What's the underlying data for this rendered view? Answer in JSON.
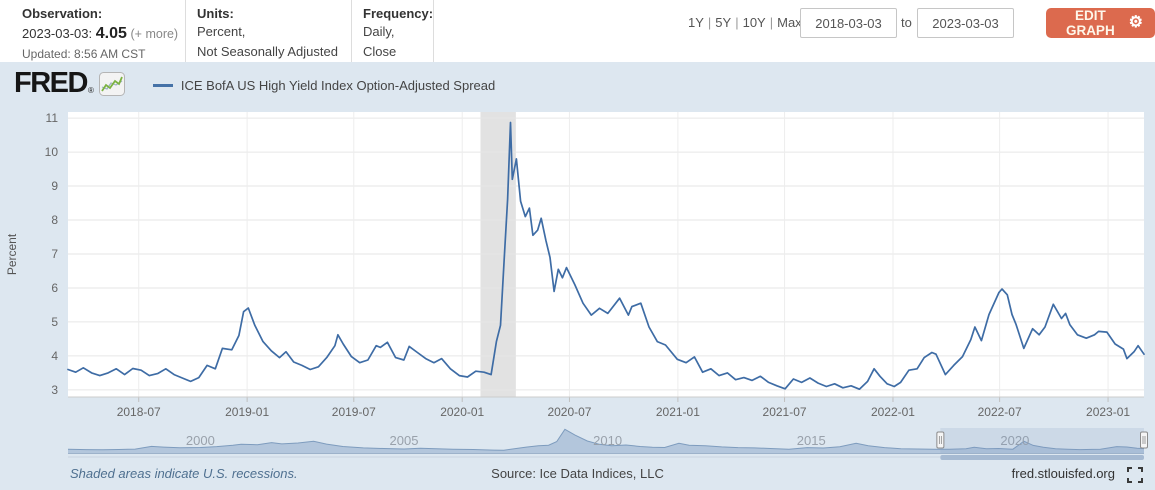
{
  "header": {
    "observation": {
      "label": "Observation:",
      "date": "2023-03-03:",
      "value": "4.05",
      "more_link": "(+ more)",
      "updated": "Updated: 8:56 AM CST"
    },
    "units": {
      "label": "Units:",
      "line1": "Percent,",
      "line2": "Not Seasonally Adjusted"
    },
    "frequency": {
      "label": "Frequency:",
      "line1": "Daily,",
      "line2": "Close"
    },
    "ranges": {
      "labels": [
        "1Y",
        "5Y",
        "10Y",
        "Max"
      ],
      "separator": "|"
    },
    "date_from": "2018-03-03",
    "to_label": "to",
    "date_to": "2023-03-03",
    "edit_button": {
      "label": "EDIT GRAPH",
      "icon": "gear-icon"
    }
  },
  "branding": {
    "logo_text": "FRED",
    "reg_mark": "®",
    "logo_icon": "sparkline-chart-icon",
    "legend_series": "ICE BofA US High Yield Index Option-Adjusted Spread"
  },
  "footer": {
    "left": "Shaded areas indicate U.S. recessions.",
    "center": "Source: Ice Data Indices, LLC",
    "right": "fred.stlouisfed.org",
    "fullscreen_icon": "fullscreen-icon"
  },
  "colors": {
    "accent_line": "#3e6ca5",
    "legend_dash": "#4572a7",
    "edit_button": "#dc6a4e",
    "graph_bg": "#dde7f0",
    "recession_band": "#e2e2e2",
    "grid_h": "#e6e6e6",
    "grid_v": "#ededed",
    "axis_text": "#666666",
    "nav_fill": "#b3c6dc",
    "nav_stroke": "#7e9cbe",
    "nav_label": "#99a1ab",
    "nav_selection": "rgba(127,155,196,0.18)",
    "nav_thumb": "#a6bad2"
  },
  "chart_data": [
    {
      "type": "line",
      "name": "ICE BofA US High Yield Index Option-Adjusted Spread",
      "ylabel": "Percent",
      "yticks": [
        3,
        4,
        5,
        6,
        7,
        8,
        9,
        10,
        11
      ],
      "ylim": [
        2.79,
        11.18
      ],
      "xdomain": [
        "2018-03-03",
        "2023-03-03"
      ],
      "xticks": [
        {
          "date": "2018-07-01",
          "label": "2018-07"
        },
        {
          "date": "2019-01-01",
          "label": "2019-01"
        },
        {
          "date": "2019-07-01",
          "label": "2019-07"
        },
        {
          "date": "2020-01-01",
          "label": "2020-01"
        },
        {
          "date": "2020-07-01",
          "label": "2020-07"
        },
        {
          "date": "2021-01-01",
          "label": "2021-01"
        },
        {
          "date": "2021-07-01",
          "label": "2021-07"
        },
        {
          "date": "2022-01-01",
          "label": "2022-01"
        },
        {
          "date": "2022-07-01",
          "label": "2022-07"
        },
        {
          "date": "2023-01-01",
          "label": "2023-01"
        }
      ],
      "recession_bands": [
        {
          "from": "2020-02-01",
          "to": "2020-04-01"
        }
      ],
      "points": [
        [
          "2018-03-03",
          3.6
        ],
        [
          "2018-03-16",
          3.52
        ],
        [
          "2018-03-29",
          3.65
        ],
        [
          "2018-04-12",
          3.5
        ],
        [
          "2018-04-26",
          3.42
        ],
        [
          "2018-05-10",
          3.5
        ],
        [
          "2018-05-24",
          3.62
        ],
        [
          "2018-06-07",
          3.45
        ],
        [
          "2018-06-21",
          3.63
        ],
        [
          "2018-07-05",
          3.58
        ],
        [
          "2018-07-19",
          3.42
        ],
        [
          "2018-08-02",
          3.48
        ],
        [
          "2018-08-16",
          3.62
        ],
        [
          "2018-08-30",
          3.45
        ],
        [
          "2018-09-13",
          3.35
        ],
        [
          "2018-09-27",
          3.25
        ],
        [
          "2018-10-11",
          3.36
        ],
        [
          "2018-10-25",
          3.72
        ],
        [
          "2018-11-08",
          3.62
        ],
        [
          "2018-11-20",
          4.22
        ],
        [
          "2018-12-06",
          4.18
        ],
        [
          "2018-12-18",
          4.6
        ],
        [
          "2018-12-26",
          5.3
        ],
        [
          "2019-01-03",
          5.41
        ],
        [
          "2019-01-14",
          4.9
        ],
        [
          "2019-01-28",
          4.42
        ],
        [
          "2019-02-11",
          4.15
        ],
        [
          "2019-02-25",
          3.95
        ],
        [
          "2019-03-08",
          4.12
        ],
        [
          "2019-03-21",
          3.82
        ],
        [
          "2019-04-04",
          3.72
        ],
        [
          "2019-04-18",
          3.6
        ],
        [
          "2019-05-02",
          3.68
        ],
        [
          "2019-05-16",
          3.95
        ],
        [
          "2019-05-30",
          4.3
        ],
        [
          "2019-06-04",
          4.62
        ],
        [
          "2019-06-13",
          4.35
        ],
        [
          "2019-06-27",
          3.98
        ],
        [
          "2019-07-11",
          3.8
        ],
        [
          "2019-07-25",
          3.88
        ],
        [
          "2019-08-08",
          4.3
        ],
        [
          "2019-08-15",
          4.25
        ],
        [
          "2019-08-27",
          4.4
        ],
        [
          "2019-09-10",
          3.95
        ],
        [
          "2019-09-24",
          3.88
        ],
        [
          "2019-10-03",
          4.28
        ],
        [
          "2019-10-17",
          4.1
        ],
        [
          "2019-10-31",
          3.92
        ],
        [
          "2019-11-14",
          3.8
        ],
        [
          "2019-11-27",
          3.92
        ],
        [
          "2019-12-12",
          3.62
        ],
        [
          "2019-12-27",
          3.42
        ],
        [
          "2020-01-10",
          3.38
        ],
        [
          "2020-01-24",
          3.55
        ],
        [
          "2020-02-07",
          3.52
        ],
        [
          "2020-02-19",
          3.45
        ],
        [
          "2020-02-28",
          4.42
        ],
        [
          "2020-03-06",
          4.9
        ],
        [
          "2020-03-12",
          6.8
        ],
        [
          "2020-03-18",
          8.6
        ],
        [
          "2020-03-23",
          10.87
        ],
        [
          "2020-03-26",
          9.2
        ],
        [
          "2020-04-02",
          9.8
        ],
        [
          "2020-04-09",
          8.55
        ],
        [
          "2020-04-17",
          8.1
        ],
        [
          "2020-04-24",
          8.35
        ],
        [
          "2020-04-30",
          7.55
        ],
        [
          "2020-05-08",
          7.7
        ],
        [
          "2020-05-14",
          8.05
        ],
        [
          "2020-05-22",
          7.4
        ],
        [
          "2020-05-29",
          6.9
        ],
        [
          "2020-06-05",
          5.9
        ],
        [
          "2020-06-12",
          6.55
        ],
        [
          "2020-06-19",
          6.3
        ],
        [
          "2020-06-26",
          6.6
        ],
        [
          "2020-07-10",
          6.1
        ],
        [
          "2020-07-24",
          5.55
        ],
        [
          "2020-08-07",
          5.2
        ],
        [
          "2020-08-21",
          5.4
        ],
        [
          "2020-09-04",
          5.25
        ],
        [
          "2020-09-24",
          5.7
        ],
        [
          "2020-10-09",
          5.2
        ],
        [
          "2020-10-15",
          5.45
        ],
        [
          "2020-10-30",
          5.55
        ],
        [
          "2020-11-13",
          4.85
        ],
        [
          "2020-11-27",
          4.42
        ],
        [
          "2020-12-11",
          4.32
        ],
        [
          "2020-12-31",
          3.9
        ],
        [
          "2021-01-15",
          3.8
        ],
        [
          "2021-01-29",
          3.97
        ],
        [
          "2021-02-12",
          3.52
        ],
        [
          "2021-02-26",
          3.62
        ],
        [
          "2021-03-12",
          3.42
        ],
        [
          "2021-03-26",
          3.5
        ],
        [
          "2021-04-09",
          3.3
        ],
        [
          "2021-04-23",
          3.36
        ],
        [
          "2021-05-07",
          3.28
        ],
        [
          "2021-05-21",
          3.4
        ],
        [
          "2021-06-04",
          3.22
        ],
        [
          "2021-06-18",
          3.12
        ],
        [
          "2021-07-02",
          3.03
        ],
        [
          "2021-07-16",
          3.32
        ],
        [
          "2021-07-30",
          3.22
        ],
        [
          "2021-08-13",
          3.35
        ],
        [
          "2021-08-27",
          3.2
        ],
        [
          "2021-09-10",
          3.1
        ],
        [
          "2021-09-24",
          3.18
        ],
        [
          "2021-10-08",
          3.06
        ],
        [
          "2021-10-22",
          3.12
        ],
        [
          "2021-11-05",
          3.02
        ],
        [
          "2021-11-19",
          3.25
        ],
        [
          "2021-11-30",
          3.62
        ],
        [
          "2021-12-10",
          3.4
        ],
        [
          "2021-12-22",
          3.18
        ],
        [
          "2022-01-03",
          3.1
        ],
        [
          "2022-01-14",
          3.22
        ],
        [
          "2022-01-28",
          3.58
        ],
        [
          "2022-02-11",
          3.62
        ],
        [
          "2022-02-23",
          3.95
        ],
        [
          "2022-03-08",
          4.1
        ],
        [
          "2022-03-15",
          4.05
        ],
        [
          "2022-03-31",
          3.45
        ],
        [
          "2022-04-14",
          3.72
        ],
        [
          "2022-04-29",
          3.98
        ],
        [
          "2022-05-13",
          4.48
        ],
        [
          "2022-05-20",
          4.85
        ],
        [
          "2022-05-31",
          4.45
        ],
        [
          "2022-06-13",
          5.22
        ],
        [
          "2022-06-30",
          5.87
        ],
        [
          "2022-07-05",
          5.97
        ],
        [
          "2022-07-14",
          5.8
        ],
        [
          "2022-07-22",
          5.22
        ],
        [
          "2022-07-29",
          4.92
        ],
        [
          "2022-08-11",
          4.22
        ],
        [
          "2022-08-26",
          4.8
        ],
        [
          "2022-09-06",
          4.62
        ],
        [
          "2022-09-16",
          4.85
        ],
        [
          "2022-09-30",
          5.52
        ],
        [
          "2022-10-14",
          5.1
        ],
        [
          "2022-10-21",
          5.25
        ],
        [
          "2022-10-28",
          4.92
        ],
        [
          "2022-11-10",
          4.62
        ],
        [
          "2022-11-25",
          4.52
        ],
        [
          "2022-12-09",
          4.62
        ],
        [
          "2022-12-16",
          4.72
        ],
        [
          "2022-12-30",
          4.7
        ],
        [
          "2023-01-13",
          4.35
        ],
        [
          "2023-01-27",
          4.2
        ],
        [
          "2023-02-02",
          3.92
        ],
        [
          "2023-02-14",
          4.12
        ],
        [
          "2023-02-21",
          4.3
        ],
        [
          "2023-03-03",
          4.05
        ]
      ]
    },
    {
      "type": "area",
      "name": "full-history-navigator",
      "xdomain": [
        1996.75,
        2023.17
      ],
      "ylim": [
        0,
        23
      ],
      "xticks": [
        2000,
        2005,
        2010,
        2015,
        2020
      ],
      "selection": {
        "from": 2018.17,
        "to": 2023.17
      },
      "points": [
        [
          1996.75,
          3.5
        ],
        [
          1997.2,
          3.1
        ],
        [
          1997.6,
          2.9
        ],
        [
          1998.0,
          3.2
        ],
        [
          1998.4,
          3.6
        ],
        [
          1998.8,
          6.1
        ],
        [
          1999.1,
          5.4
        ],
        [
          1999.5,
          4.9
        ],
        [
          2000.0,
          5.1
        ],
        [
          2000.4,
          5.9
        ],
        [
          2000.8,
          7.2
        ],
        [
          2001.0,
          8.1
        ],
        [
          2001.4,
          7.6
        ],
        [
          2001.75,
          9.6
        ],
        [
          2002.0,
          8.4
        ],
        [
          2002.4,
          9.2
        ],
        [
          2002.78,
          10.9
        ],
        [
          2003.1,
          8.2
        ],
        [
          2003.5,
          6.0
        ],
        [
          2004.0,
          4.7
        ],
        [
          2004.5,
          4.1
        ],
        [
          2005.0,
          3.7
        ],
        [
          2005.4,
          4.4
        ],
        [
          2005.8,
          3.9
        ],
        [
          2006.2,
          3.5
        ],
        [
          2006.7,
          3.2
        ],
        [
          2007.2,
          2.7
        ],
        [
          2007.45,
          2.5
        ],
        [
          2007.8,
          4.4
        ],
        [
          2008.0,
          5.4
        ],
        [
          2008.3,
          6.6
        ],
        [
          2008.55,
          7.2
        ],
        [
          2008.75,
          10.5
        ],
        [
          2008.95,
          21.8
        ],
        [
          2009.2,
          16.5
        ],
        [
          2009.5,
          11.0
        ],
        [
          2009.8,
          8.0
        ],
        [
          2010.1,
          6.6
        ],
        [
          2010.45,
          7.4
        ],
        [
          2010.8,
          6.0
        ],
        [
          2011.1,
          5.3
        ],
        [
          2011.4,
          5.1
        ],
        [
          2011.75,
          8.9
        ],
        [
          2012.0,
          7.2
        ],
        [
          2012.4,
          6.6
        ],
        [
          2012.8,
          5.6
        ],
        [
          2013.2,
          5.0
        ],
        [
          2013.6,
          4.7
        ],
        [
          2014.0,
          4.1
        ],
        [
          2014.45,
          3.5
        ],
        [
          2014.9,
          5.0
        ],
        [
          2015.3,
          4.6
        ],
        [
          2015.7,
          5.8
        ],
        [
          2016.1,
          8.9
        ],
        [
          2016.4,
          6.6
        ],
        [
          2016.8,
          5.0
        ],
        [
          2017.2,
          4.0
        ],
        [
          2017.6,
          3.7
        ],
        [
          2018.0,
          3.5
        ],
        [
          2018.4,
          3.5
        ],
        [
          2018.8,
          3.9
        ],
        [
          2019.0,
          5.3
        ],
        [
          2019.3,
          3.9
        ],
        [
          2019.6,
          4.1
        ],
        [
          2019.95,
          3.5
        ],
        [
          2020.22,
          10.9
        ],
        [
          2020.45,
          7.0
        ],
        [
          2020.7,
          5.3
        ],
        [
          2021.0,
          3.9
        ],
        [
          2021.3,
          3.4
        ],
        [
          2021.6,
          3.1
        ],
        [
          2021.9,
          3.3
        ],
        [
          2022.1,
          3.5
        ],
        [
          2022.5,
          5.9
        ],
        [
          2022.75,
          5.5
        ],
        [
          2023.0,
          4.4
        ],
        [
          2023.17,
          4.05
        ]
      ]
    }
  ]
}
